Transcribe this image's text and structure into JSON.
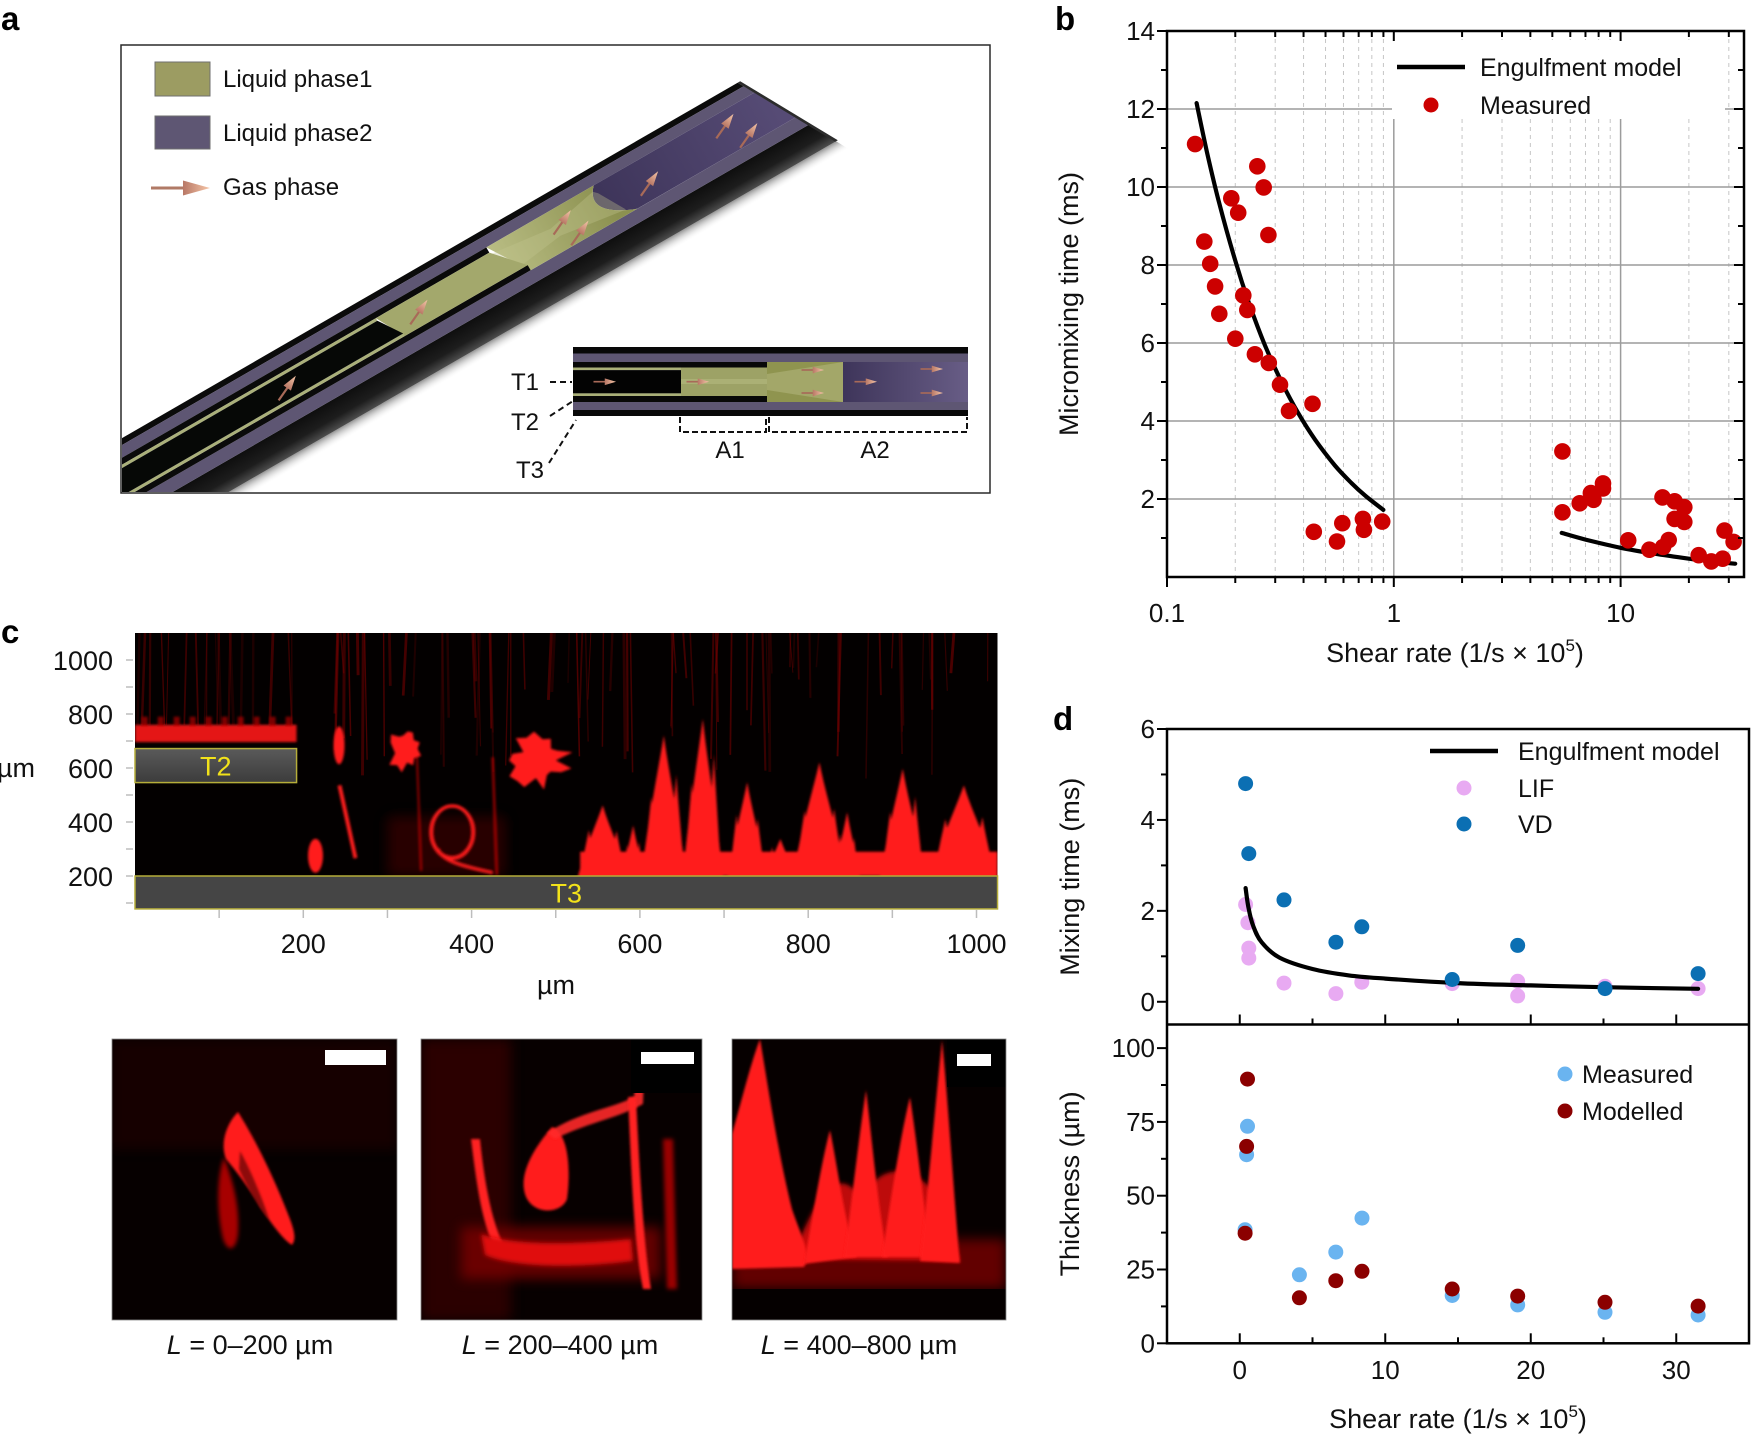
{
  "panel_labels": {
    "a": "a",
    "b": "b",
    "c": "c",
    "d": "d"
  },
  "panel_a": {
    "legend": [
      {
        "label": "Liquid phase1",
        "color": "#9c9c62"
      },
      {
        "label": "Liquid phase2",
        "color": "#5e5673"
      },
      {
        "label": "Gas phase",
        "color": "#e2a088"
      }
    ],
    "inset_labels": {
      "t1": "T1",
      "t2": "T2",
      "t3": "T3",
      "a1": "A1",
      "a2": "A2"
    }
  },
  "panel_c": {
    "heatmap": {
      "x_range": [
        0,
        1025
      ],
      "y_range": [
        78,
        1100
      ],
      "x_ticks": [
        200,
        400,
        600,
        800,
        1000
      ],
      "x_tick_labels": [
        "200",
        "400",
        "600",
        "800",
        "1000"
      ],
      "y_ticks": [
        1000,
        800,
        600,
        400,
        200
      ],
      "y_tick_labels": [
        "1000",
        "800",
        "600",
        "400",
        "200"
      ],
      "minor_tick_step": 100,
      "xlabel": "µm",
      "ylabel": "µm",
      "colormap": "black-red",
      "region_label_color": "#f2e21a",
      "regions": [
        {
          "label": "T2",
          "x": [
            0,
            192
          ],
          "y": [
            546,
            672
          ]
        },
        {
          "label": "T3",
          "x": [
            0,
            1025
          ],
          "y": [
            78,
            200
          ]
        }
      ]
    },
    "images": [
      {
        "var": "L",
        "caption": " = 0–200 µm"
      },
      {
        "var": "L",
        "caption": " = 200–400 µm"
      },
      {
        "var": "L",
        "caption": " = 400–800 µm"
      }
    ]
  },
  "chart_data": [
    {
      "panel": "b",
      "type": "scatter",
      "title": "",
      "xlabel": {
        "main": "Shear rate (1/s × 10",
        "sup": "5",
        "end": ")"
      },
      "ylabel": "Micromixing time (ms)",
      "xscale": "log",
      "xlim": [
        0.1,
        35
      ],
      "ylim": [
        0,
        14
      ],
      "x_ticks": [
        0.1,
        1,
        10
      ],
      "x_tick_labels": [
        "0.1",
        "1",
        "10"
      ],
      "y_ticks": [
        2,
        4,
        6,
        8,
        10,
        12,
        14
      ],
      "y_tick_labels": [
        "2",
        "4",
        "6",
        "8",
        "10",
        "12",
        "14"
      ],
      "y_minor_ticks": [
        1,
        3,
        5,
        7,
        9,
        11,
        13
      ],
      "grid": true,
      "legend": "top-right",
      "legend_entries": [
        "Engulfment model",
        "Measured"
      ],
      "series": [
        {
          "name": "Engulfment model",
          "kind": "line",
          "color": "#000000",
          "segments": [
            [
              [
                0.135,
                12.15
              ],
              [
                0.15,
                10.9
              ],
              [
                0.17,
                9.58
              ],
              [
                0.2,
                8.11
              ],
              [
                0.23,
                7.02
              ],
              [
                0.27,
                5.95
              ],
              [
                0.32,
                5.0
              ],
              [
                0.38,
                4.19
              ],
              [
                0.45,
                3.52
              ],
              [
                0.55,
                2.86
              ],
              [
                0.65,
                2.41
              ],
              [
                0.75,
                2.08
              ],
              [
                0.9,
                1.72
              ]
            ],
            [
              [
                5.5,
                1.13
              ],
              [
                7,
                0.96
              ],
              [
                10,
                0.75
              ],
              [
                14,
                0.6
              ],
              [
                20,
                0.47
              ],
              [
                26,
                0.39
              ],
              [
                32,
                0.34
              ]
            ]
          ]
        },
        {
          "name": "Measured",
          "kind": "scatter",
          "color": "#cc0000",
          "points": [
            [
              0.133,
              11.1
            ],
            [
              0.146,
              8.6
            ],
            [
              0.155,
              8.03
            ],
            [
              0.163,
              7.45
            ],
            [
              0.17,
              6.75
            ],
            [
              0.192,
              9.71
            ],
            [
              0.206,
              9.34
            ],
            [
              0.2,
              6.11
            ],
            [
              0.217,
              7.22
            ],
            [
              0.226,
              6.85
            ],
            [
              0.25,
              10.53
            ],
            [
              0.267,
              9.99
            ],
            [
              0.28,
              8.77
            ],
            [
              0.244,
              5.71
            ],
            [
              0.281,
              5.49
            ],
            [
              0.315,
              4.93
            ],
            [
              0.345,
              4.26
            ],
            [
              0.438,
              4.44
            ],
            [
              0.444,
              1.16
            ],
            [
              0.562,
              0.91
            ],
            [
              0.593,
              1.38
            ],
            [
              0.731,
              1.49
            ],
            [
              0.738,
              1.21
            ],
            [
              0.889,
              1.42
            ],
            [
              5.54,
              3.22
            ],
            [
              5.54,
              1.66
            ],
            [
              6.6,
              1.89
            ],
            [
              7.4,
              2.15
            ],
            [
              7.6,
              1.98
            ],
            [
              8.36,
              2.4
            ],
            [
              8.36,
              2.27
            ],
            [
              10.8,
              0.94
            ],
            [
              13.4,
              0.7
            ],
            [
              15.3,
              2.04
            ],
            [
              15.4,
              0.77
            ],
            [
              16.3,
              0.95
            ],
            [
              17.3,
              1.94
            ],
            [
              17.3,
              1.49
            ],
            [
              19.1,
              1.79
            ],
            [
              19.1,
              1.41
            ],
            [
              22.1,
              0.56
            ],
            [
              25.1,
              0.4
            ],
            [
              28.2,
              0.47
            ],
            [
              28.7,
              1.19
            ],
            [
              31.5,
              0.9
            ]
          ]
        }
      ]
    },
    {
      "panel": "d-top",
      "type": "scatter",
      "title": "",
      "xlabel": "",
      "ylabel": "Mixing time (ms)",
      "xscale": "linear",
      "xlim": [
        -5,
        35
      ],
      "ylim": [
        -0.5,
        6
      ],
      "x_ticks": [
        0,
        10,
        20,
        30
      ],
      "x_minor_ticks": [
        5,
        15,
        25
      ],
      "y_ticks": [
        0,
        2,
        4,
        6
      ],
      "y_tick_labels": [
        "0",
        "2",
        "4",
        "6"
      ],
      "y_minor_ticks": [
        1,
        3,
        5
      ],
      "grid": false,
      "legend": "top-right",
      "legend_entries": [
        "Engulfment model",
        "LIF",
        "VD"
      ],
      "series": [
        {
          "name": "LIF",
          "kind": "scatter",
          "color": "#e8aaf2",
          "points": [
            [
              0.4,
              2.14
            ],
            [
              0.56,
              1.74
            ],
            [
              0.62,
              1.18
            ],
            [
              0.62,
              0.96
            ],
            [
              3.04,
              0.41
            ],
            [
              6.61,
              0.18
            ],
            [
              8.39,
              0.43
            ],
            [
              14.6,
              0.4
            ],
            [
              19.1,
              0.45
            ],
            [
              19.1,
              0.13
            ],
            [
              25.1,
              0.34
            ],
            [
              31.5,
              0.29
            ]
          ]
        },
        {
          "name": "Engulfment model",
          "kind": "line",
          "color": "#000000",
          "points": [
            [
              0.4,
              2.5
            ],
            [
              0.6,
              2.07
            ],
            [
              0.91,
              1.68
            ],
            [
              1.5,
              1.31
            ],
            [
              2.74,
              0.97
            ],
            [
              5,
              0.72
            ],
            [
              7.5,
              0.58
            ],
            [
              10,
              0.51
            ],
            [
              15,
              0.41
            ],
            [
              20,
              0.36
            ],
            [
              25,
              0.32
            ],
            [
              31.5,
              0.285
            ]
          ]
        },
        {
          "name": "VD",
          "kind": "scatter",
          "color": "#0b6fb3",
          "points": [
            [
              0.4,
              4.8
            ],
            [
              0.62,
              3.26
            ],
            [
              3.04,
              2.24
            ],
            [
              6.61,
              1.31
            ],
            [
              8.39,
              1.65
            ],
            [
              14.6,
              0.49
            ],
            [
              19.1,
              1.24
            ],
            [
              25.1,
              0.29
            ],
            [
              31.5,
              0.62
            ]
          ]
        }
      ]
    },
    {
      "panel": "d-bottom",
      "type": "scatter",
      "title": "",
      "xlabel": {
        "main": "Shear rate (1/s × 10",
        "sup": "5",
        "end": ")"
      },
      "ylabel": "Thickness (µm)",
      "xscale": "linear",
      "xlim": [
        -5,
        35
      ],
      "ylim": [
        0,
        108
      ],
      "x_ticks": [
        0,
        10,
        20,
        30
      ],
      "x_tick_labels": [
        "0",
        "10",
        "20",
        "30"
      ],
      "x_minor_ticks": [
        5,
        15,
        25
      ],
      "y_ticks": [
        0,
        25,
        50,
        75,
        100
      ],
      "y_tick_labels": [
        "0",
        "25",
        "50",
        "75",
        "100"
      ],
      "y_minor_ticks": [
        12.5,
        37.5,
        62.5,
        87.5
      ],
      "grid": false,
      "legend": "top-right",
      "legend_entries": [
        "Measured",
        "Modelled"
      ],
      "series": [
        {
          "name": "Measured",
          "kind": "scatter",
          "color": "#6ab4f0",
          "points": [
            [
              0.53,
              73.5
            ],
            [
              0.47,
              63.9
            ],
            [
              0.37,
              38.5
            ],
            [
              4.1,
              23.2
            ],
            [
              6.6,
              30.9
            ],
            [
              8.4,
              42.4
            ],
            [
              14.6,
              16.2
            ],
            [
              19.1,
              13.0
            ],
            [
              25.1,
              10.5
            ],
            [
              31.5,
              9.6
            ]
          ]
        },
        {
          "name": "Modelled",
          "kind": "scatter",
          "color": "#8b0000",
          "points": [
            [
              0.53,
              89.5
            ],
            [
              0.47,
              66.7
            ],
            [
              0.37,
              37.3
            ],
            [
              4.1,
              15.4
            ],
            [
              6.6,
              21.2
            ],
            [
              8.4,
              24.4
            ],
            [
              14.6,
              18.4
            ],
            [
              19.1,
              16.0
            ],
            [
              25.1,
              13.9
            ],
            [
              31.5,
              12.6
            ]
          ]
        }
      ]
    }
  ]
}
